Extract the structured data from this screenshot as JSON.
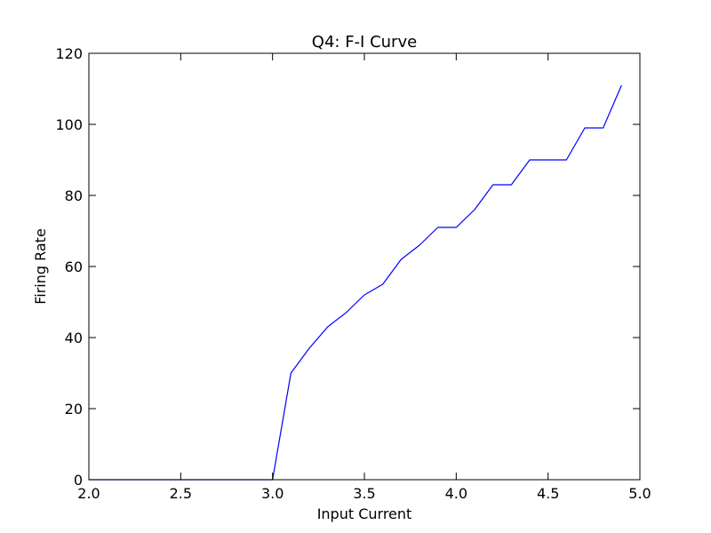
{
  "chart_data": {
    "type": "line",
    "title": "Q4: F-I Curve",
    "xlabel": "Input Current",
    "ylabel": "Firing Rate",
    "xlim": [
      2.0,
      5.0
    ],
    "ylim": [
      0,
      120
    ],
    "grid": false,
    "x_ticks": [
      "2.0",
      "2.5",
      "3.0",
      "3.5",
      "4.0",
      "4.5",
      "5.0"
    ],
    "y_ticks": [
      "0",
      "20",
      "40",
      "60",
      "80",
      "100",
      "120"
    ],
    "line_color": "#0000ff",
    "series": [
      {
        "x": [
          2.0,
          2.1,
          2.2,
          2.3,
          2.4,
          2.5,
          2.6,
          2.7,
          2.8,
          2.9,
          3.0,
          3.1,
          3.2,
          3.3,
          3.4,
          3.5,
          3.6,
          3.7,
          3.8,
          3.9,
          4.0,
          4.1,
          4.2,
          4.3,
          4.4,
          4.5,
          4.6,
          4.7,
          4.8,
          4.9
        ],
        "y": [
          0,
          0,
          0,
          0,
          0,
          0,
          0,
          0,
          0,
          0,
          0,
          30,
          37,
          43,
          47,
          52,
          55,
          62,
          66,
          71,
          71,
          76,
          83,
          83,
          90,
          90,
          90,
          99,
          99,
          111
        ]
      }
    ]
  }
}
